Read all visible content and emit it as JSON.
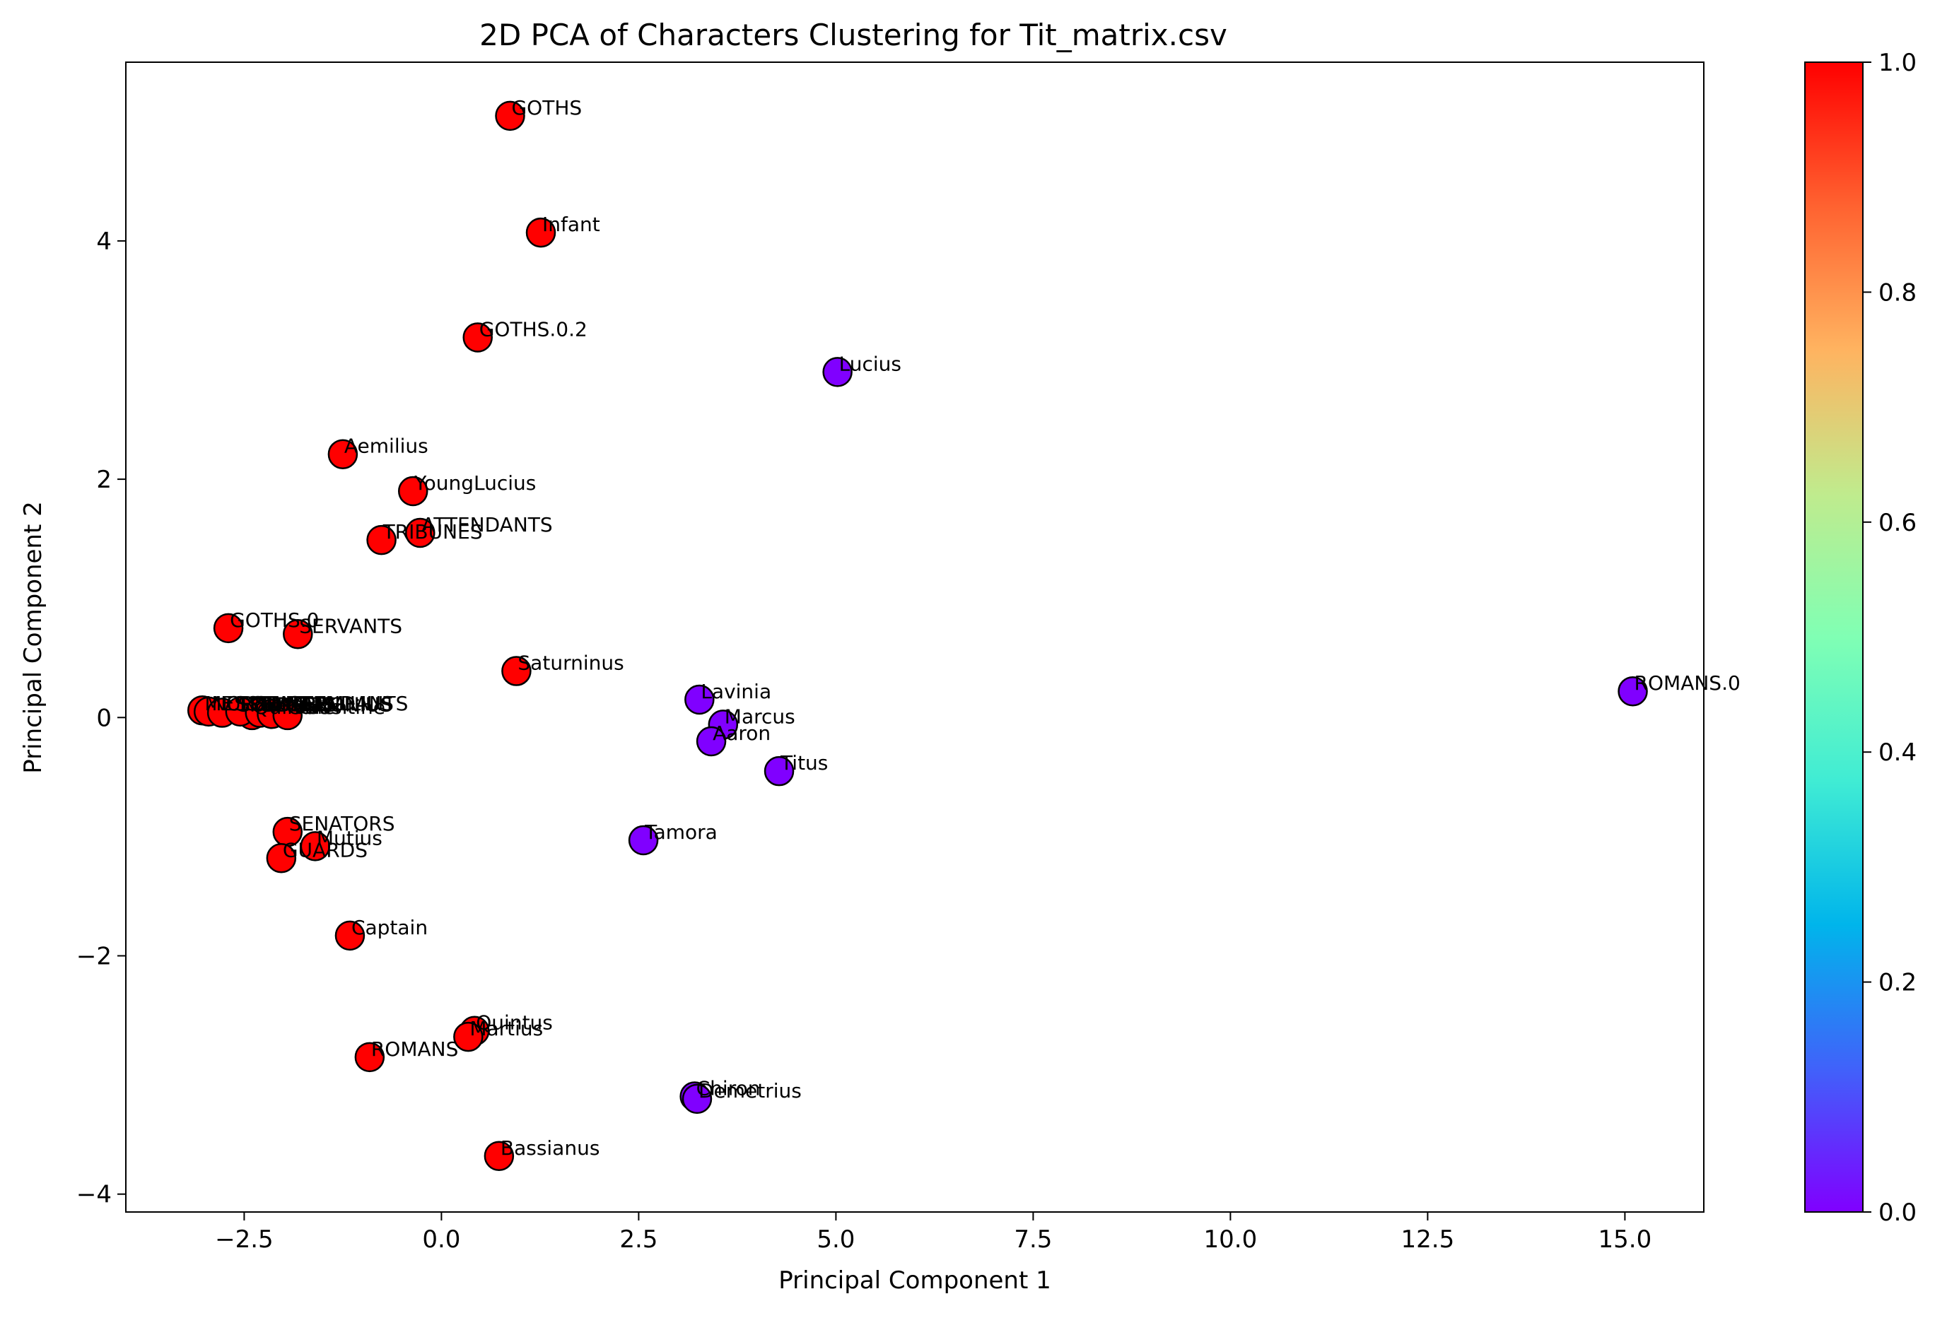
{
  "chart_data": {
    "type": "scatter",
    "title": "2D PCA of Characters Clustering for Tit_matrix.csv",
    "xlabel": "Principal Component 1",
    "ylabel": "Principal Component 2",
    "xlim": [
      -4.0,
      16.0
    ],
    "ylim": [
      -4.15,
      5.5
    ],
    "xticks": [
      -2.5,
      0.0,
      2.5,
      5.0,
      7.5,
      10.0,
      12.5,
      15.0
    ],
    "xtick_labels": [
      "−2.5",
      "0.0",
      "2.5",
      "5.0",
      "7.5",
      "10.0",
      "12.5",
      "15.0"
    ],
    "yticks": [
      -4,
      -2,
      0,
      2,
      4
    ],
    "ytick_labels": [
      "−4",
      "−2",
      "0",
      "2",
      "4"
    ],
    "grid": false,
    "colormap": "rainbow",
    "colorbar": {
      "range": [
        0.0,
        1.0
      ],
      "ticks": [
        0.0,
        0.2,
        0.4,
        0.6,
        0.8,
        1.0
      ],
      "tick_labels": [
        "0.0",
        "0.2",
        "0.4",
        "0.6",
        "0.8",
        "1.0"
      ],
      "colors": [
        "#8000ff",
        "#4062fa",
        "#00b5eb",
        "#40ecd4",
        "#80ffb4",
        "#c0eb8d",
        "#ffb360",
        "#ff6230",
        "#ff0000"
      ]
    },
    "marker_edge_color": "#000000",
    "points": [
      {
        "label": "GOTHS",
        "x": 0.87,
        "y": 5.05,
        "cluster": 1
      },
      {
        "label": "Infant",
        "x": 1.26,
        "y": 4.07,
        "cluster": 1
      },
      {
        "label": "GOTHS.0.2",
        "x": 0.46,
        "y": 3.19,
        "cluster": 1
      },
      {
        "label": "Lucius",
        "x": 5.02,
        "y": 2.9,
        "cluster": 0
      },
      {
        "label": "Aemilius",
        "x": -1.25,
        "y": 2.21,
        "cluster": 1
      },
      {
        "label": "YoungLucius",
        "x": -0.36,
        "y": 1.9,
        "cluster": 1
      },
      {
        "label": "ATTENDANTS",
        "x": -0.27,
        "y": 1.55,
        "cluster": 1
      },
      {
        "label": "TRIBUNES",
        "x": -0.76,
        "y": 1.49,
        "cluster": 1
      },
      {
        "label": "GOTHS.0",
        "x": -2.7,
        "y": 0.75,
        "cluster": 1
      },
      {
        "label": "SERVANTS",
        "x": -1.82,
        "y": 0.7,
        "cluster": 1
      },
      {
        "label": "Saturninus",
        "x": 0.95,
        "y": 0.39,
        "cluster": 1
      },
      {
        "label": "Lavinia",
        "x": 3.27,
        "y": 0.15,
        "cluster": 0
      },
      {
        "label": "ROMANS.0",
        "x": 15.1,
        "y": 0.22,
        "cluster": 0
      },
      {
        "label": "Marcus",
        "x": 3.57,
        "y": -0.06,
        "cluster": 0
      },
      {
        "label": "Aaron",
        "x": 3.42,
        "y": -0.2,
        "cluster": 0
      },
      {
        "label": "Titus",
        "x": 4.28,
        "y": -0.45,
        "cluster": 0
      },
      {
        "label": "Tamora",
        "x": 2.56,
        "y": -1.03,
        "cluster": 0
      },
      {
        "label": "Quintus",
        "x": -2.4,
        "y": 0.02,
        "cluster": 1
      },
      {
        "label": "",
        "x": -3.03,
        "y": 0.06,
        "cluster": 1
      },
      {
        "label": "",
        "x": -2.95,
        "y": 0.05,
        "cluster": 1
      },
      {
        "label": "",
        "x": -2.78,
        "y": 0.04,
        "cluster": 1
      },
      {
        "label": "",
        "x": -2.55,
        "y": 0.05,
        "cluster": 1
      },
      {
        "label": "",
        "x": -2.3,
        "y": 0.04,
        "cluster": 1
      },
      {
        "label": "",
        "x": -2.15,
        "y": 0.03,
        "cluster": 1
      },
      {
        "label": "",
        "x": -1.95,
        "y": 0.02,
        "cluster": 1
      },
      {
        "label": "SENATORS",
        "x": -1.95,
        "y": -0.96,
        "cluster": 1
      },
      {
        "label": "Mutius",
        "x": -1.6,
        "y": -1.08,
        "cluster": 1
      },
      {
        "label": "GUARDS",
        "x": -2.03,
        "y": -1.18,
        "cluster": 1
      },
      {
        "label": "Captain",
        "x": -1.16,
        "y": -1.83,
        "cluster": 1
      },
      {
        "label": "Quintus",
        "x": 0.42,
        "y": -2.63,
        "cluster": 1
      },
      {
        "label": "Martius",
        "x": 0.34,
        "y": -2.68,
        "cluster": 1
      },
      {
        "label": "ROMANS",
        "x": -0.91,
        "y": -2.85,
        "cluster": 1
      },
      {
        "label": "Chiron",
        "x": 3.21,
        "y": -3.18,
        "cluster": 0
      },
      {
        "label": "Demetrius",
        "x": 3.24,
        "y": -3.2,
        "cluster": 0
      },
      {
        "label": "Bassianus",
        "x": 0.73,
        "y": -3.68,
        "cluster": 1
      }
    ],
    "overlap_labels": [
      {
        "label": "MESSENGER",
        "x": -3.02,
        "y": 0.05
      },
      {
        "label": "NURSE",
        "x": -2.93,
        "y": 0.05
      },
      {
        "label": "CLOWN",
        "x": -2.75,
        "y": 0.05
      },
      {
        "label": "SOLDIERS",
        "x": -2.6,
        "y": 0.04
      },
      {
        "label": "PUBLIUS",
        "x": -2.45,
        "y": 0.04
      },
      {
        "label": "SEMPRONIUS",
        "x": -2.3,
        "y": 0.04
      },
      {
        "label": "ATTENDANTS",
        "x": -2.1,
        "y": 0.05
      },
      {
        "label": "Caius",
        "x": -1.97,
        "y": 0.02
      },
      {
        "label": "Valentine",
        "x": -1.9,
        "y": 0.02
      },
      {
        "label": "AEMILIUS",
        "x": -1.8,
        "y": 0.05
      }
    ]
  }
}
